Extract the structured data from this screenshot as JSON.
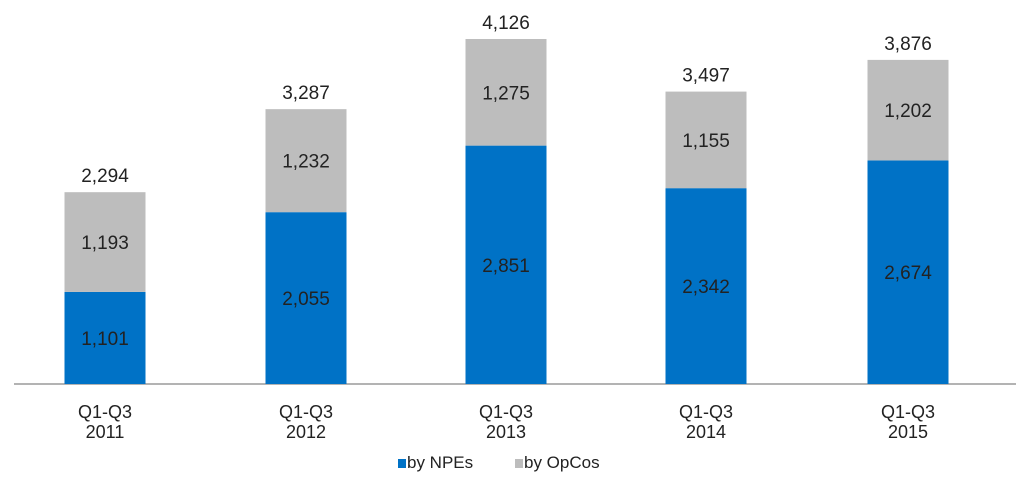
{
  "chart_data": {
    "type": "bar",
    "stacked": true,
    "categories": [
      [
        "Q1-Q3",
        "2011"
      ],
      [
        "Q1-Q3",
        "2012"
      ],
      [
        "Q1-Q3",
        "2013"
      ],
      [
        "Q1-Q3",
        "2014"
      ],
      [
        "Q1-Q3",
        "2015"
      ]
    ],
    "series": [
      {
        "name": "by NPEs",
        "color": "#0072c6",
        "values": [
          1101,
          2055,
          2851,
          2342,
          2674
        ],
        "labels": [
          "1,101",
          "2,055",
          "2,851",
          "2,342",
          "2,674"
        ]
      },
      {
        "name": "by OpCos",
        "color": "#bdbdbd",
        "values": [
          1193,
          1232,
          1275,
          1155,
          1202
        ],
        "labels": [
          "1,193",
          "1,232",
          "1,275",
          "1,155",
          "1,202"
        ]
      }
    ],
    "totals": [
      2294,
      3287,
      4126,
      3497,
      3876
    ],
    "total_labels": [
      "2,294",
      "3,287",
      "4,126",
      "3,497",
      "3,876"
    ],
    "title": "",
    "xlabel": "",
    "ylabel": "",
    "ylim": [
      0,
      4300
    ],
    "grid": false,
    "legend": "bottom"
  }
}
